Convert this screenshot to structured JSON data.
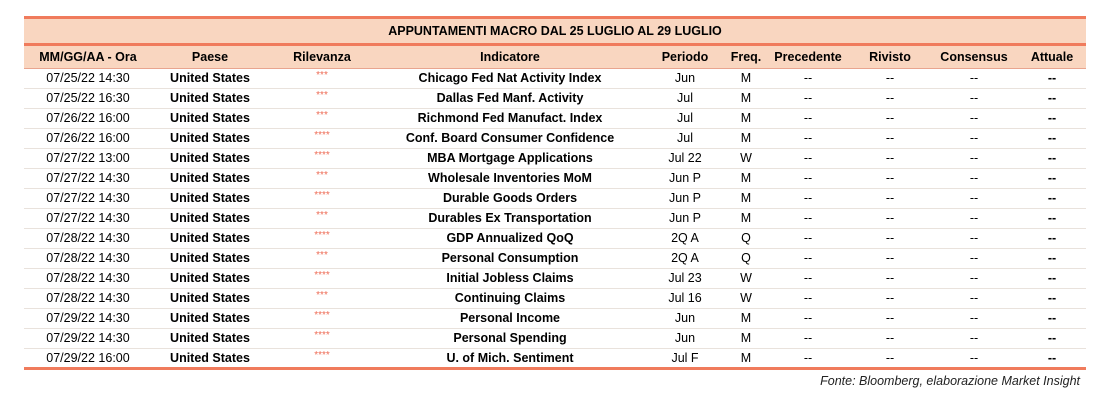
{
  "title": "APPUNTAMENTI MACRO DAL 25 LUGLIO AL 29 LUGLIO",
  "columns": [
    "MM/GG/AA - Ora",
    "Paese",
    "Rilevanza",
    "Indicatore",
    "Periodo",
    "Freq.",
    "Precedente",
    "Rivisto",
    "Consensus",
    "Attuale"
  ],
  "rows": [
    {
      "datetime": "07/25/22 14:30",
      "country": "United States",
      "relevance": "***",
      "indicator": "Chicago Fed Nat Activity Index",
      "period": "Jun",
      "freq": "M",
      "previous": "--",
      "revised": "--",
      "consensus": "--",
      "actual": "--"
    },
    {
      "datetime": "07/25/22 16:30",
      "country": "United States",
      "relevance": "***",
      "indicator": "Dallas Fed Manf. Activity",
      "period": "Jul",
      "freq": "M",
      "previous": "--",
      "revised": "--",
      "consensus": "--",
      "actual": "--"
    },
    {
      "datetime": "07/26/22 16:00",
      "country": "United States",
      "relevance": "***",
      "indicator": "Richmond Fed Manufact. Index",
      "period": "Jul",
      "freq": "M",
      "previous": "--",
      "revised": "--",
      "consensus": "--",
      "actual": "--"
    },
    {
      "datetime": "07/26/22 16:00",
      "country": "United States",
      "relevance": "****",
      "indicator": "Conf. Board Consumer Confidence",
      "period": "Jul",
      "freq": "M",
      "previous": "--",
      "revised": "--",
      "consensus": "--",
      "actual": "--"
    },
    {
      "datetime": "07/27/22 13:00",
      "country": "United States",
      "relevance": "****",
      "indicator": "MBA Mortgage Applications",
      "period": "Jul 22",
      "freq": "W",
      "previous": "--",
      "revised": "--",
      "consensus": "--",
      "actual": "--"
    },
    {
      "datetime": "07/27/22 14:30",
      "country": "United States",
      "relevance": "***",
      "indicator": "Wholesale Inventories MoM",
      "period": "Jun P",
      "freq": "M",
      "previous": "--",
      "revised": "--",
      "consensus": "--",
      "actual": "--"
    },
    {
      "datetime": "07/27/22 14:30",
      "country": "United States",
      "relevance": "****",
      "indicator": "Durable Goods Orders",
      "period": "Jun P",
      "freq": "M",
      "previous": "--",
      "revised": "--",
      "consensus": "--",
      "actual": "--"
    },
    {
      "datetime": "07/27/22 14:30",
      "country": "United States",
      "relevance": "***",
      "indicator": "Durables Ex Transportation",
      "period": "Jun P",
      "freq": "M",
      "previous": "--",
      "revised": "--",
      "consensus": "--",
      "actual": "--"
    },
    {
      "datetime": "07/28/22 14:30",
      "country": "United States",
      "relevance": "****",
      "indicator": "GDP Annualized QoQ",
      "period": "2Q A",
      "freq": "Q",
      "previous": "--",
      "revised": "--",
      "consensus": "--",
      "actual": "--"
    },
    {
      "datetime": "07/28/22 14:30",
      "country": "United States",
      "relevance": "***",
      "indicator": "Personal Consumption",
      "period": "2Q A",
      "freq": "Q",
      "previous": "--",
      "revised": "--",
      "consensus": "--",
      "actual": "--"
    },
    {
      "datetime": "07/28/22 14:30",
      "country": "United States",
      "relevance": "****",
      "indicator": "Initial Jobless Claims",
      "period": "Jul 23",
      "freq": "W",
      "previous": "--",
      "revised": "--",
      "consensus": "--",
      "actual": "--"
    },
    {
      "datetime": "07/28/22 14:30",
      "country": "United States",
      "relevance": "***",
      "indicator": "Continuing Claims",
      "period": "Jul 16",
      "freq": "W",
      "previous": "--",
      "revised": "--",
      "consensus": "--",
      "actual": "--"
    },
    {
      "datetime": "07/29/22 14:30",
      "country": "United States",
      "relevance": "****",
      "indicator": "Personal Income",
      "period": "Jun",
      "freq": "M",
      "previous": "--",
      "revised": "--",
      "consensus": "--",
      "actual": "--"
    },
    {
      "datetime": "07/29/22 14:30",
      "country": "United States",
      "relevance": "****",
      "indicator": "Personal Spending",
      "period": "Jun",
      "freq": "M",
      "previous": "--",
      "revised": "--",
      "consensus": "--",
      "actual": "--"
    },
    {
      "datetime": "07/29/22 16:00",
      "country": "United States",
      "relevance": "****",
      "indicator": "U. of Mich. Sentiment",
      "period": "Jul F",
      "freq": "M",
      "previous": "--",
      "revised": "--",
      "consensus": "--",
      "actual": "--"
    }
  ],
  "source": "Fonte: Bloomberg, elaborazione Market Insight",
  "colors": {
    "accent": "#f07b5c",
    "header_bg": "#f9d6c0",
    "stars": "#ee6b55"
  }
}
